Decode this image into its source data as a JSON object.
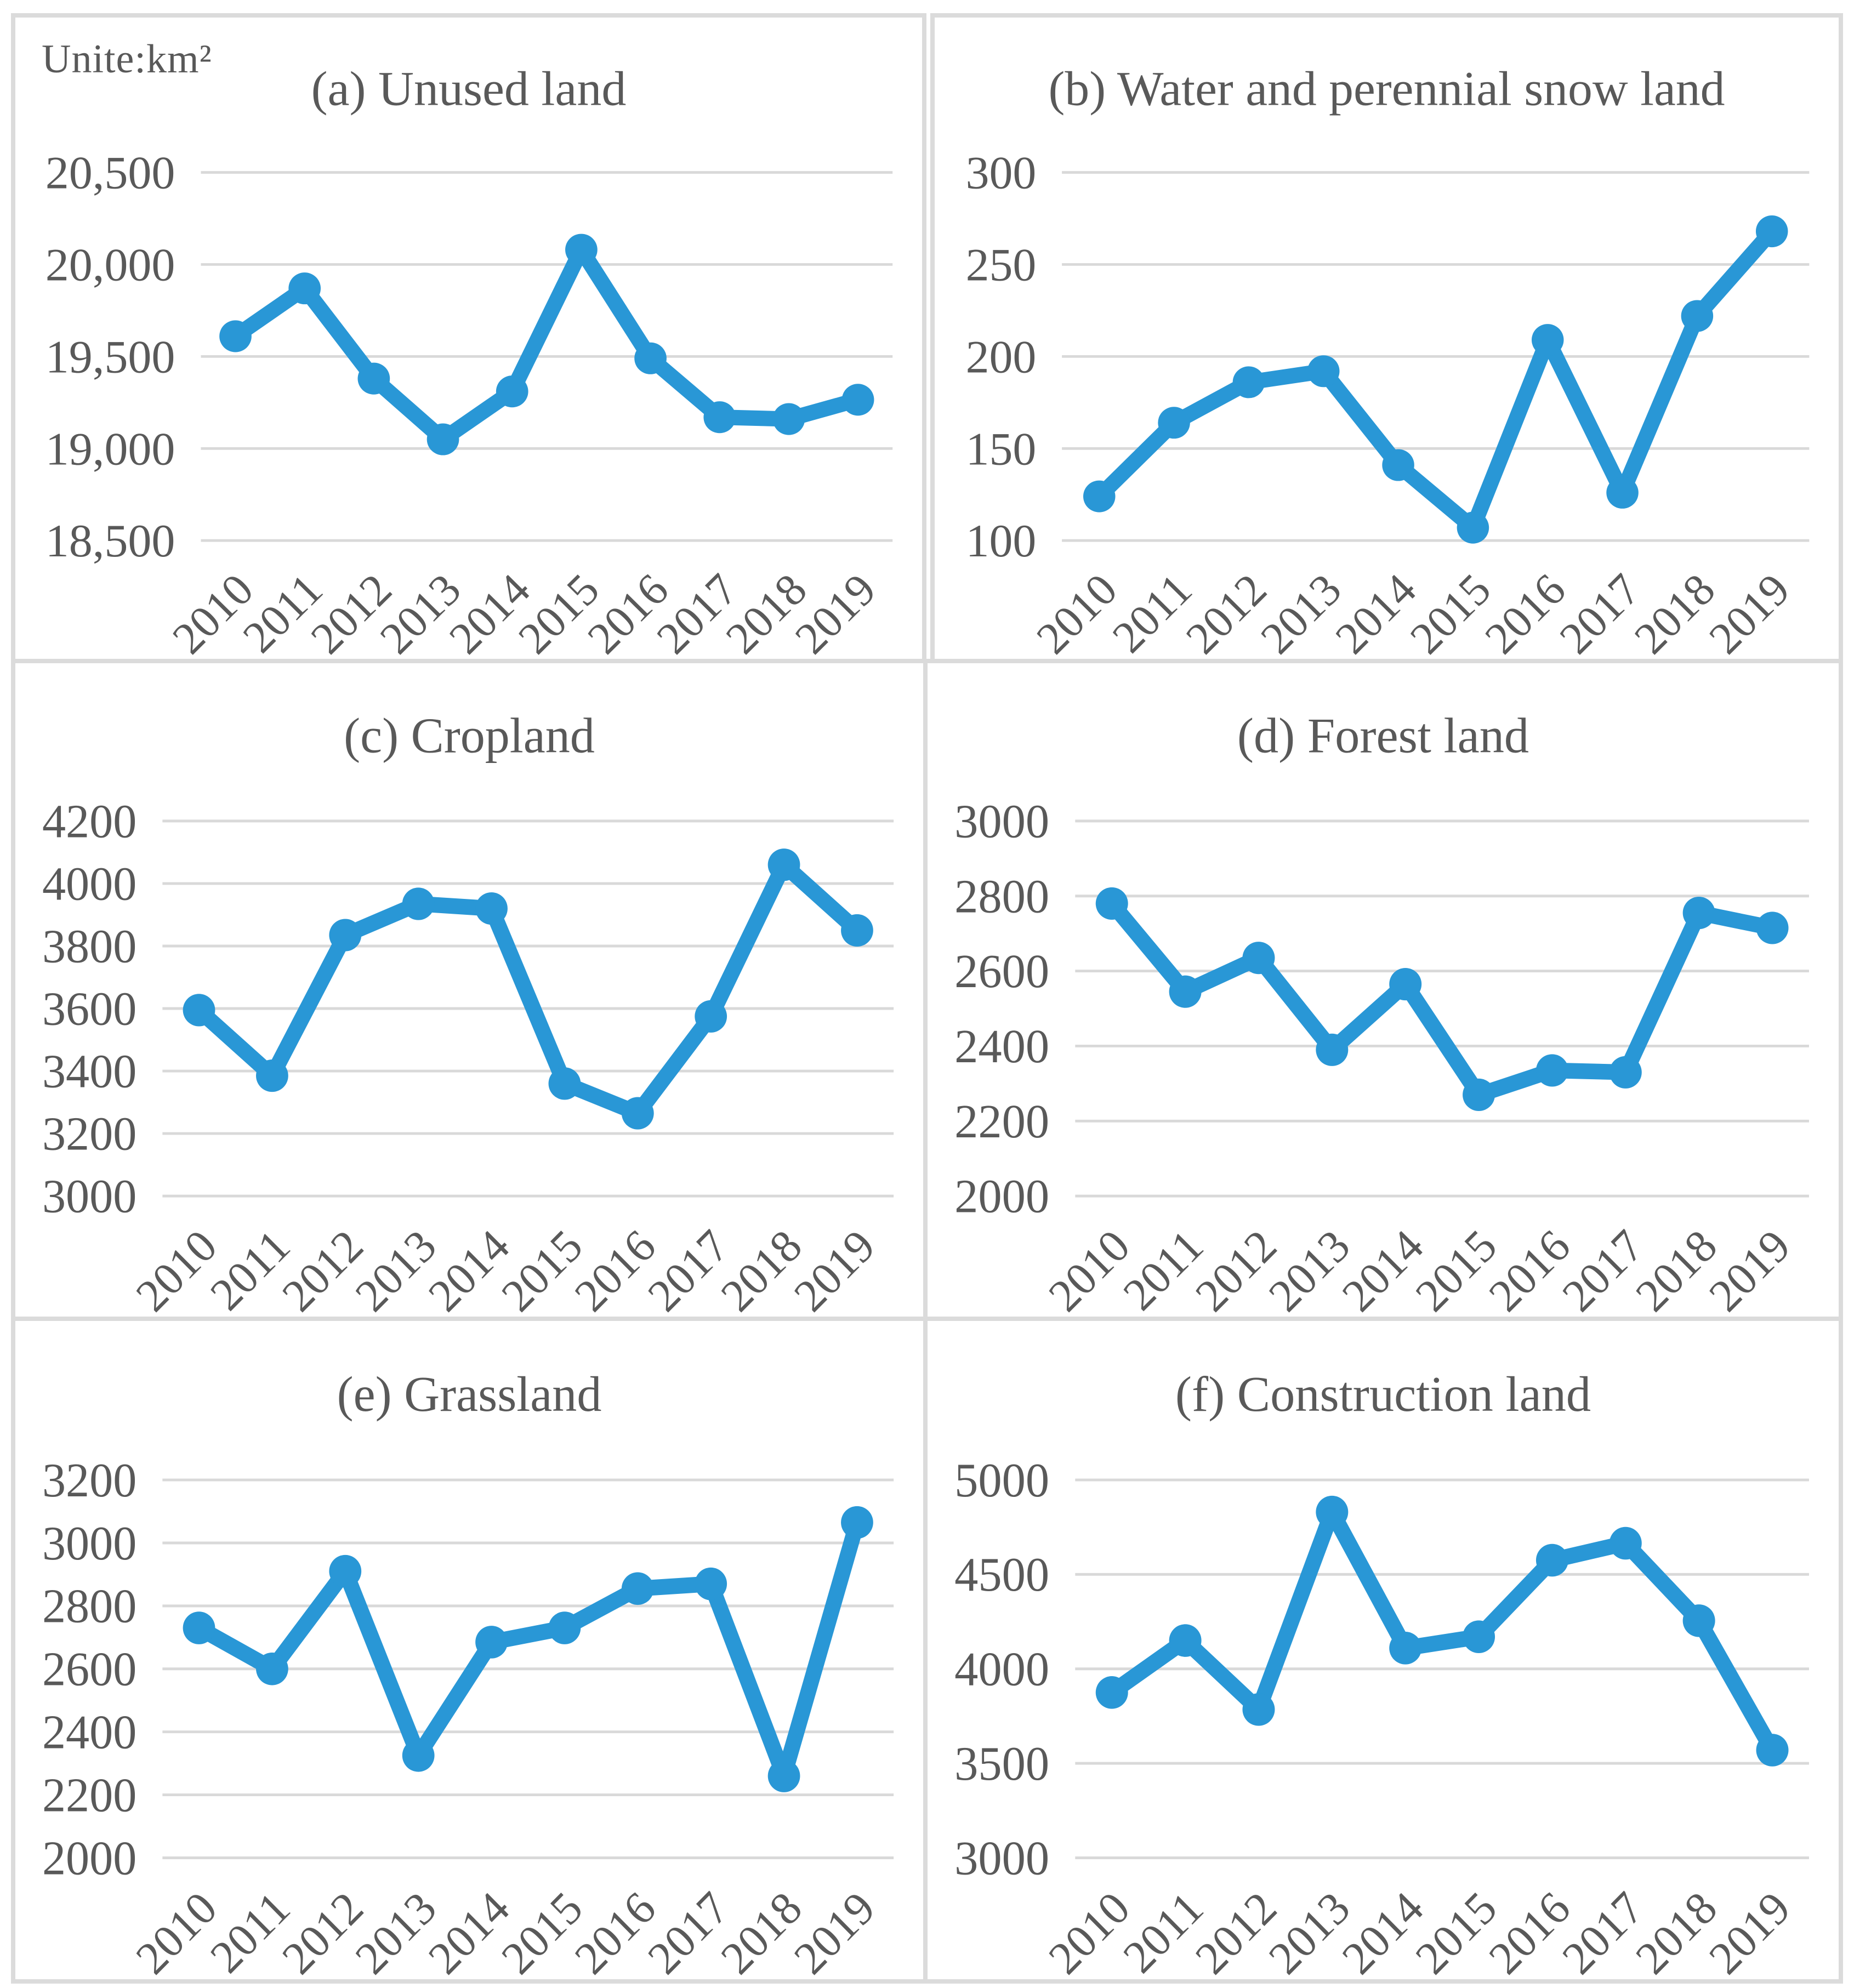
{
  "figure": {
    "unit_label": "Unite:km²",
    "text_color": "#595959",
    "grid_color": "#D9D9D9",
    "border_color": "#DBDBDB",
    "accent_color": "#2997D6"
  },
  "chart_data": [
    {
      "type": "line",
      "panel": "a",
      "title": "(a) Unused land",
      "unit_label": "Unite:km²",
      "x": [
        "2010",
        "2011",
        "2012",
        "2013",
        "2014",
        "2015",
        "2016",
        "2017",
        "2018",
        "2019"
      ],
      "values": [
        19610,
        19870,
        19380,
        19050,
        19310,
        20080,
        19490,
        19170,
        19160,
        19265
      ],
      "ylim": [
        18500,
        20500
      ],
      "yticks": [
        18500,
        19000,
        19500,
        20000,
        20500
      ],
      "ytick_labels": [
        "18,500",
        "19,000",
        "19,500",
        "20,000",
        "20,500"
      ],
      "xlabel": "",
      "ylabel": "",
      "grid": "horizontal",
      "legend": "none",
      "line_color": "#2997D6",
      "marker": "circle"
    },
    {
      "type": "line",
      "panel": "b",
      "title": "(b) Water and perennial snow land",
      "x": [
        "2010",
        "2011",
        "2012",
        "2013",
        "2014",
        "2015",
        "2016",
        "2017",
        "2018",
        "2019"
      ],
      "values": [
        124,
        164,
        186,
        192,
        141,
        107,
        209,
        126,
        222,
        268
      ],
      "ylim": [
        100,
        300
      ],
      "yticks": [
        100,
        150,
        200,
        250,
        300
      ],
      "ytick_labels": [
        "100",
        "150",
        "200",
        "250",
        "300"
      ],
      "xlabel": "",
      "ylabel": "",
      "grid": "horizontal",
      "legend": "none",
      "line_color": "#2997D6",
      "marker": "circle"
    },
    {
      "type": "line",
      "panel": "c",
      "title": "(c) Cropland",
      "x": [
        "2010",
        "2011",
        "2012",
        "2013",
        "2014",
        "2015",
        "2016",
        "2017",
        "2018",
        "2019"
      ],
      "values": [
        3595,
        3385,
        3835,
        3935,
        3920,
        3360,
        3265,
        3575,
        4060,
        3850
      ],
      "ylim": [
        3000,
        4200
      ],
      "yticks": [
        3000,
        3200,
        3400,
        3600,
        3800,
        4000,
        4200
      ],
      "ytick_labels": [
        "3000",
        "3200",
        "3400",
        "3600",
        "3800",
        "4000",
        "4200"
      ],
      "xlabel": "",
      "ylabel": "",
      "grid": "horizontal",
      "legend": "none",
      "line_color": "#2997D6",
      "marker": "circle"
    },
    {
      "type": "line",
      "panel": "d",
      "title": "(d) Forest land",
      "x": [
        "2010",
        "2011",
        "2012",
        "2013",
        "2014",
        "2015",
        "2016",
        "2017",
        "2018",
        "2019"
      ],
      "values": [
        2780,
        2545,
        2635,
        2390,
        2565,
        2270,
        2335,
        2330,
        2755,
        2715
      ],
      "ylim": [
        2000,
        3000
      ],
      "yticks": [
        2000,
        2200,
        2400,
        2600,
        2800,
        3000
      ],
      "ytick_labels": [
        "2000",
        "2200",
        "2400",
        "2600",
        "2800",
        "3000"
      ],
      "xlabel": "",
      "ylabel": "",
      "grid": "horizontal",
      "legend": "none",
      "line_color": "#2997D6",
      "marker": "circle"
    },
    {
      "type": "line",
      "panel": "e",
      "title": "(e) Grassland",
      "x": [
        "2010",
        "2011",
        "2012",
        "2013",
        "2014",
        "2015",
        "2016",
        "2017",
        "2018",
        "2019"
      ],
      "values": [
        2730,
        2600,
        2910,
        2325,
        2685,
        2730,
        2855,
        2870,
        2260,
        3065
      ],
      "ylim": [
        2000,
        3200
      ],
      "yticks": [
        2000,
        2200,
        2400,
        2600,
        2800,
        3000,
        3200
      ],
      "ytick_labels": [
        "2000",
        "2200",
        "2400",
        "2600",
        "2800",
        "3000",
        "3200"
      ],
      "xlabel": "",
      "ylabel": "",
      "grid": "horizontal",
      "legend": "none",
      "line_color": "#2997D6",
      "marker": "circle"
    },
    {
      "type": "line",
      "panel": "f",
      "title": "(f) Construction land",
      "x": [
        "2010",
        "2011",
        "2012",
        "2013",
        "2014",
        "2015",
        "2016",
        "2017",
        "2018",
        "2019"
      ],
      "values": [
        3875,
        4150,
        3785,
        4830,
        4110,
        4170,
        4575,
        4665,
        4255,
        3570
      ],
      "ylim": [
        3000,
        5000
      ],
      "yticks": [
        3000,
        3500,
        4000,
        4500,
        5000
      ],
      "ytick_labels": [
        "3000",
        "3500",
        "4000",
        "4500",
        "5000"
      ],
      "xlabel": "",
      "ylabel": "",
      "grid": "horizontal",
      "legend": "none",
      "line_color": "#2997D6",
      "marker": "circle"
    }
  ]
}
